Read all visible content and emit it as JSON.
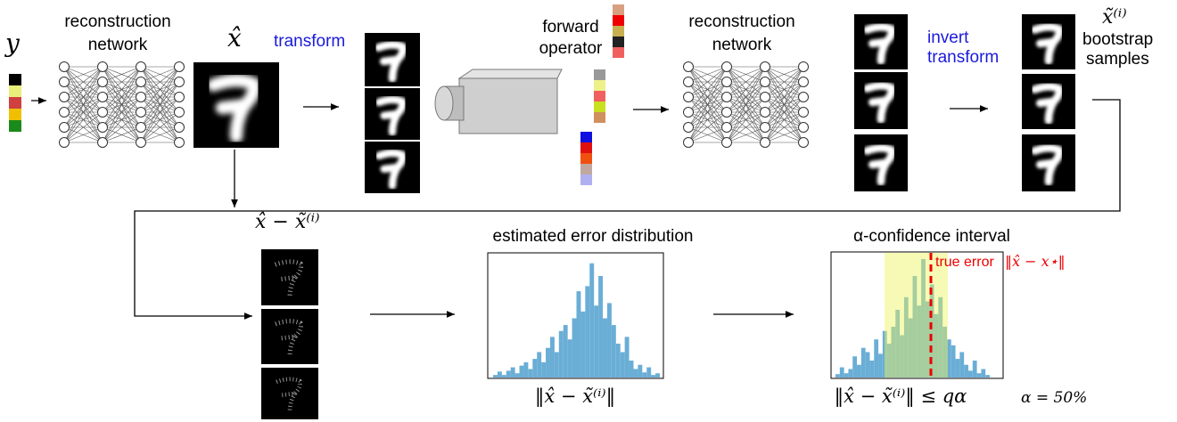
{
  "input_label": "y",
  "network_1": [
    "reconstruction",
    "network"
  ],
  "estimate_label": "x̂",
  "transform_label": "transform",
  "forward_operator": [
    "forward",
    "operator"
  ],
  "network_2": [
    "reconstruction",
    "network"
  ],
  "invert_transform": [
    "invert",
    "transform"
  ],
  "bootstrap_symbol": "x̃⁽ⁱ⁾",
  "bootstrap_label": [
    "bootstrap",
    "samples"
  ],
  "difference_label": "x̂ − x̃⁽ⁱ⁾",
  "error_histogram": {
    "title": "estimated error distribution",
    "xlabel": "‖x̂ − x̃⁽ⁱ⁾‖",
    "counts": [
      3,
      7,
      3,
      8,
      12,
      5,
      14,
      18,
      10,
      22,
      30,
      18,
      35,
      48,
      30,
      55,
      62,
      45,
      70,
      102,
      78,
      108,
      135,
      85,
      120,
      70,
      88,
      62,
      40,
      30,
      48,
      20,
      10,
      15,
      6,
      12,
      3,
      5
    ]
  },
  "confidence_histogram": {
    "title": "α-confidence interval",
    "true_error": "true error",
    "true_error_formula": "‖x̂ − x⋆‖",
    "xlabel": "‖x̂ − x̃⁽ⁱ⁾‖ ≤ qα",
    "alpha": "α = 50%",
    "counts": [
      4,
      12,
      5,
      10,
      25,
      15,
      35,
      30,
      20,
      45,
      28,
      55,
      40,
      60,
      80,
      50,
      95,
      70,
      120,
      85,
      140,
      90,
      110,
      75,
      95,
      60,
      45,
      38,
      22,
      30,
      15,
      8,
      20,
      5,
      10,
      3
    ]
  }
}
